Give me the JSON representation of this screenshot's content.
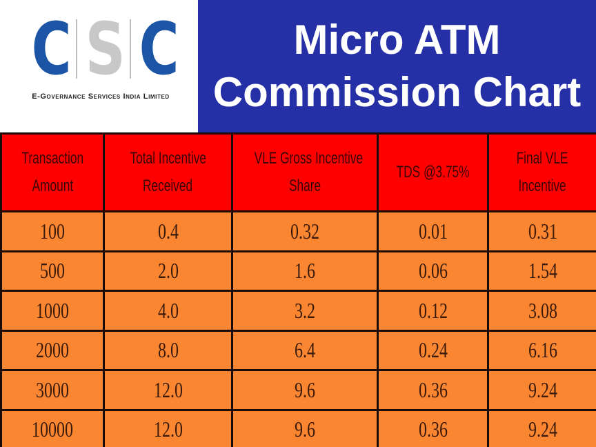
{
  "logo": {
    "letters": [
      "C",
      "S",
      "C"
    ],
    "tagline": "E-Governance Services India Limited"
  },
  "header": {
    "title_line1": "Micro ATM",
    "title_line2": "Commission Chart"
  },
  "colors": {
    "title_bg": "#2530a7",
    "logo_blue": "#1c55a5",
    "logo_gray": "#c8c8c8",
    "table_header_bg": "#ff0000",
    "table_row_bg": "#fb8631"
  },
  "table": {
    "columns": [
      [
        "Transaction",
        "Amount"
      ],
      [
        "Total Incentive",
        "Received"
      ],
      [
        "VLE Gross Incentive",
        "Share"
      ],
      [
        "TDS @3.75%"
      ],
      [
        "Final VLE",
        "Incentive"
      ]
    ],
    "rows": [
      [
        "100",
        "0.4",
        "0.32",
        "0.01",
        "0.31"
      ],
      [
        "500",
        "2.0",
        "1.6",
        "0.06",
        "1.54"
      ],
      [
        "1000",
        "4.0",
        "3.2",
        "0.12",
        "3.08"
      ],
      [
        "2000",
        "8.0",
        "6.4",
        "0.24",
        "6.16"
      ],
      [
        "3000",
        "12.0",
        "9.6",
        "0.36",
        "9.24"
      ],
      [
        "10000",
        "12.0",
        "9.6",
        "0.36",
        "9.24"
      ]
    ]
  },
  "chart_data": {
    "type": "table",
    "title": "Micro ATM Commission Chart",
    "columns": [
      "Transaction Amount",
      "Total Incentive Received",
      "VLE Gross Incentive Share",
      "TDS @3.75%",
      "Final VLE Incentive"
    ],
    "rows": [
      [
        100,
        0.4,
        0.32,
        0.01,
        0.31
      ],
      [
        500,
        2.0,
        1.6,
        0.06,
        1.54
      ],
      [
        1000,
        4.0,
        3.2,
        0.12,
        3.08
      ],
      [
        2000,
        8.0,
        6.4,
        0.24,
        6.16
      ],
      [
        3000,
        12.0,
        9.6,
        0.36,
        9.24
      ],
      [
        10000,
        12.0,
        9.6,
        0.36,
        9.24
      ]
    ]
  }
}
